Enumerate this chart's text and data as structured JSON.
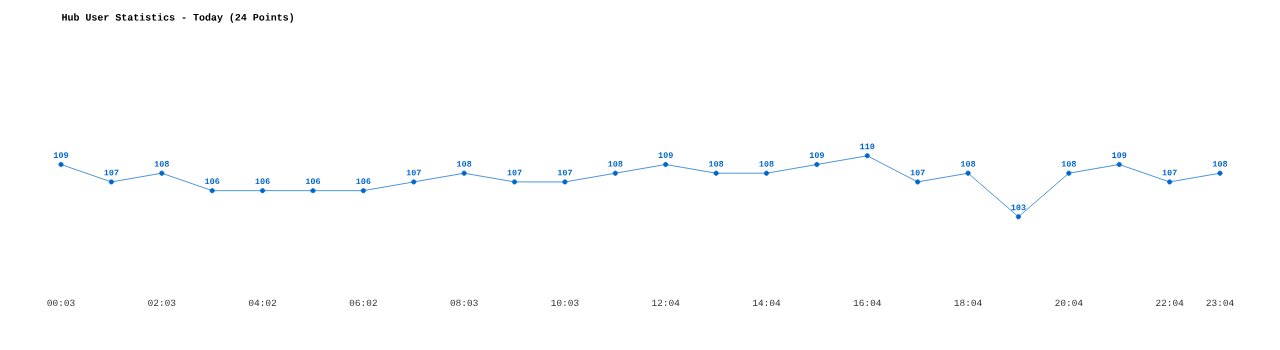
{
  "chart_data": {
    "type": "line",
    "title": "Hub User Statistics - Today (24 Points)",
    "categories": [
      "00:03",
      null,
      "02:03",
      null,
      "04:02",
      null,
      "06:02",
      null,
      "08:03",
      null,
      "10:03",
      null,
      "12:04",
      null,
      "14:04",
      null,
      "16:04",
      null,
      "18:04",
      null,
      "20:04",
      null,
      "22:04",
      "23:04"
    ],
    "values": [
      109,
      107,
      108,
      106,
      106,
      106,
      106,
      107,
      108,
      107,
      107,
      108,
      109,
      108,
      108,
      109,
      110,
      107,
      108,
      103,
      108,
      109,
      107,
      108
    ],
    "color": "#0066cc",
    "marker": "circle",
    "line_style": "solid",
    "data_labels": true
  }
}
